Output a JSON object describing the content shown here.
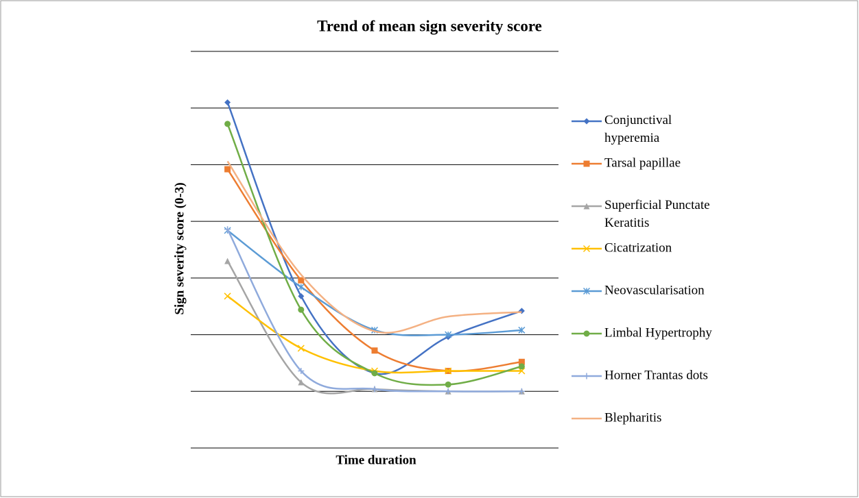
{
  "chart_data": {
    "type": "line",
    "title": "Trend of mean sign severity score",
    "x_label": "Time duration",
    "y_label": "Sign severity score (0-3)",
    "categories": [
      null,
      null,
      null,
      null,
      null
    ],
    "ylim": [
      -0.5,
      3
    ],
    "yticks": [
      -0.5,
      0,
      0.5,
      1,
      1.5,
      2,
      2.5,
      3
    ],
    "grid": true,
    "smooth": true,
    "legend": "right",
    "series": [
      {
        "name": "Conjunctival hyperemia",
        "color": "#4472c4",
        "marker": "diamond",
        "values": [
          2.55,
          0.84,
          0.16,
          0.48,
          0.71
        ]
      },
      {
        "name": "Tarsal papillae",
        "color": "#ed7d31",
        "marker": "square",
        "values": [
          1.96,
          0.98,
          0.36,
          0.18,
          0.26
        ]
      },
      {
        "name": "Superficial Punctate Keratitis",
        "color": "#a5a5a5",
        "marker": "triangle",
        "values": [
          1.15,
          0.08,
          0.02,
          0,
          0
        ]
      },
      {
        "name": "Cicatrization",
        "color": "#ffc000",
        "marker": "x",
        "values": [
          0.84,
          0.38,
          0.18,
          0.18,
          0.18
        ]
      },
      {
        "name": "Neovascularisation",
        "color": "#5b9bd5",
        "marker": "star",
        "values": [
          1.42,
          0.92,
          0.54,
          0.5,
          0.54
        ]
      },
      {
        "name": "Limbal Hypertrophy",
        "color": "#70ad47",
        "marker": "circle",
        "values": [
          2.36,
          0.72,
          0.16,
          0.06,
          0.22
        ]
      },
      {
        "name": "Horner Trantas dots",
        "color": "#8faadc",
        "marker": "plus",
        "values": [
          1.43,
          0.18,
          0.02,
          0,
          0
        ]
      },
      {
        "name": "Blepharitis",
        "color": "#f4b183",
        "marker": "none",
        "values": [
          2.03,
          1.03,
          0.53,
          0.66,
          0.7
        ]
      }
    ]
  }
}
